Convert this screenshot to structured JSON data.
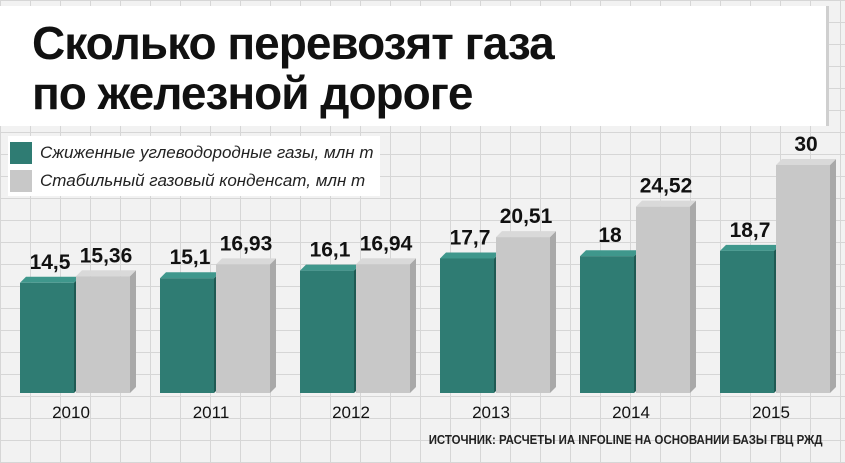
{
  "chart_data": {
    "type": "bar",
    "title": "Сколько перевозят газа по железной дороге",
    "title_lines": [
      "Сколько перевозят газа",
      "по железной дороге"
    ],
    "categories": [
      "2010",
      "2011",
      "2012",
      "2013",
      "2014",
      "2015"
    ],
    "series": [
      {
        "name": "Сжиженные углеводородные газы, млн т",
        "values": [
          14.5,
          15.1,
          16.1,
          17.7,
          18,
          18.7
        ],
        "labels": [
          "14,5",
          "15,1",
          "16,1",
          "17,7",
          "18",
          "18,7"
        ],
        "color": "#2f7c73"
      },
      {
        "name": "Стабильный газовый конденсат, млн т",
        "values": [
          15.36,
          16.93,
          16.94,
          20.51,
          24.52,
          30
        ],
        "labels": [
          "15,36",
          "16,93",
          "16,94",
          "20,51",
          "24,52",
          "30"
        ],
        "color": "#c8c8c8"
      }
    ],
    "ylim": [
      0,
      30
    ],
    "grid": true,
    "legend_position": "top-left",
    "source": "ИСТОЧНИК: РАСЧЕТЫ ИА INFOLINE НА ОСНОВАНИИ БАЗЫ ГВЦ РЖД"
  }
}
